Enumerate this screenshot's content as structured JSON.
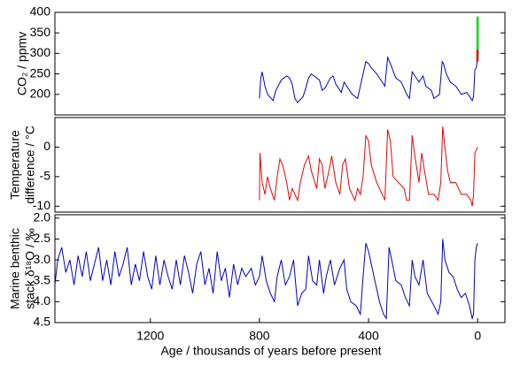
{
  "chart_data": [
    {
      "type": "line",
      "ylabel": "CO₂ / ppmv",
      "xlim": [
        1550,
        -100
      ],
      "ylim": [
        150,
        400
      ],
      "yticks": [
        200,
        250,
        300,
        350,
        400
      ],
      "series": [
        {
          "color": "#0000cc",
          "x": [
            800,
            795,
            790,
            780,
            770,
            750,
            740,
            720,
            700,
            690,
            680,
            670,
            660,
            640,
            630,
            620,
            610,
            600,
            580,
            570,
            560,
            540,
            530,
            520,
            500,
            490,
            480,
            460,
            440,
            430,
            410,
            400,
            390,
            370,
            350,
            340,
            330,
            320,
            300,
            280,
            260,
            250,
            240,
            230,
            215,
            200,
            190,
            170,
            160,
            150,
            140,
            130,
            125,
            115,
            100,
            80,
            60,
            40,
            20,
            15,
            10,
            5,
            2
          ],
          "values": [
            190,
            240,
            255,
            220,
            200,
            185,
            210,
            235,
            245,
            240,
            225,
            190,
            180,
            195,
            215,
            240,
            250,
            245,
            235,
            210,
            215,
            240,
            245,
            225,
            205,
            230,
            220,
            200,
            190,
            220,
            280,
            275,
            265,
            250,
            230,
            220,
            290,
            275,
            240,
            230,
            200,
            190,
            255,
            245,
            230,
            245,
            220,
            210,
            190,
            195,
            200,
            280,
            275,
            250,
            230,
            220,
            200,
            205,
            185,
            195,
            260,
            265,
            280
          ]
        },
        {
          "color": "#dd0000",
          "x": [
            1,
            0
          ],
          "values": [
            280,
            310
          ]
        },
        {
          "color": "#00dd00",
          "x": [
            0,
            0
          ],
          "values": [
            310,
            390
          ]
        }
      ]
    },
    {
      "type": "line",
      "ylabel": [
        "Temperature",
        "difference / °C"
      ],
      "xlim": [
        1550,
        -100
      ],
      "ylim": [
        -11,
        5
      ],
      "yticks": [
        -10,
        -5,
        0
      ],
      "series": [
        {
          "color": "#ee0000",
          "x": [
            800,
            798,
            795,
            790,
            780,
            770,
            760,
            745,
            735,
            725,
            715,
            700,
            690,
            680,
            660,
            650,
            635,
            620,
            610,
            590,
            580,
            570,
            560,
            545,
            535,
            520,
            505,
            495,
            485,
            470,
            450,
            440,
            430,
            420,
            410,
            400,
            390,
            370,
            350,
            340,
            330,
            320,
            310,
            290,
            270,
            260,
            250,
            240,
            235,
            225,
            215,
            205,
            195,
            180,
            160,
            145,
            135,
            128,
            120,
            110,
            100,
            80,
            60,
            40,
            25,
            20,
            15,
            10,
            5,
            0
          ],
          "values": [
            -9,
            -1,
            -3,
            -6,
            -8,
            -5,
            -7,
            -9,
            -5,
            -2,
            -3,
            -6,
            -9,
            -7,
            -9,
            -6,
            -3,
            -1.5,
            -4,
            -7,
            -2,
            -3,
            -7,
            -4,
            -1.5,
            -6,
            -8,
            -3,
            -2,
            -7,
            -9,
            -7,
            -8,
            -5,
            2,
            1,
            -3,
            -6,
            -8,
            -9,
            3,
            1,
            -5,
            -6,
            -7,
            -9,
            -9,
            2,
            0,
            -3,
            -6,
            -1,
            -4,
            -8,
            -8,
            -9,
            -6,
            3.5,
            0,
            -4,
            -6,
            -6,
            -8,
            -8,
            -9,
            -10,
            -8,
            -1,
            -0.5,
            0
          ]
        }
      ]
    },
    {
      "type": "line",
      "ylabel": [
        "Marine benthic",
        "stack δ¹⁸O / ‰"
      ],
      "xlabel": "Age / thousands of years before present",
      "xlim": [
        1550,
        -100
      ],
      "xticks": [
        1200,
        800,
        400,
        0
      ],
      "ylim": [
        4.5,
        1.92
      ],
      "yticks": [
        {
          "value": 2,
          "label": "2.0"
        },
        2.5,
        {
          "value": 3,
          "label": "3.0"
        },
        3.5,
        {
          "value": 4,
          "label": "4.0"
        },
        4.5
      ],
      "series": [
        {
          "color": "#0000cc",
          "x": [
            1550,
            1540,
            1525,
            1510,
            1495,
            1480,
            1465,
            1450,
            1435,
            1420,
            1405,
            1390,
            1375,
            1360,
            1345,
            1330,
            1315,
            1300,
            1285,
            1270,
            1255,
            1240,
            1225,
            1210,
            1195,
            1180,
            1165,
            1150,
            1135,
            1120,
            1105,
            1090,
            1075,
            1060,
            1045,
            1030,
            1015,
            1000,
            985,
            970,
            955,
            940,
            925,
            910,
            895,
            880,
            865,
            850,
            830,
            815,
            800,
            790,
            775,
            760,
            745,
            735,
            720,
            705,
            690,
            675,
            660,
            645,
            630,
            620,
            605,
            590,
            580,
            565,
            555,
            540,
            525,
            505,
            490,
            480,
            465,
            445,
            430,
            420,
            410,
            400,
            380,
            360,
            345,
            335,
            325,
            315,
            300,
            280,
            265,
            250,
            240,
            230,
            215,
            200,
            185,
            160,
            145,
            135,
            128,
            120,
            105,
            90,
            75,
            60,
            45,
            30,
            20,
            15,
            10,
            5,
            0
          ],
          "values": [
            3.6,
            3.0,
            2.7,
            3.3,
            3.0,
            3.6,
            2.9,
            3.4,
            2.8,
            3.5,
            3.1,
            2.7,
            3.5,
            3.0,
            3.6,
            2.8,
            3.4,
            3.1,
            2.7,
            3.6,
            3.1,
            3.5,
            2.8,
            3.4,
            3.7,
            2.9,
            3.6,
            3.0,
            3.4,
            3.7,
            3.0,
            3.6,
            2.9,
            3.3,
            3.8,
            3.1,
            2.8,
            3.6,
            3.2,
            3.8,
            2.8,
            3.5,
            3.2,
            3.9,
            3.1,
            3.6,
            3.2,
            3.4,
            3.2,
            3.6,
            3.4,
            2.9,
            3.5,
            3.8,
            4.0,
            3.4,
            3.0,
            3.6,
            3.4,
            3.0,
            4.1,
            3.8,
            3.7,
            2.9,
            3.5,
            3.6,
            3.0,
            3.8,
            3.4,
            3.0,
            3.6,
            3.2,
            3.0,
            3.7,
            4.0,
            4.1,
            4.3,
            3.4,
            2.6,
            2.8,
            3.4,
            4.0,
            4.3,
            4.4,
            2.7,
            3.0,
            3.5,
            3.6,
            3.9,
            4.1,
            3.0,
            3.4,
            3.6,
            3.0,
            3.8,
            4.1,
            4.3,
            4.0,
            2.5,
            3.0,
            3.3,
            3.4,
            3.7,
            3.9,
            3.8,
            4.1,
            4.4,
            4.3,
            3.0,
            2.7,
            2.6
          ]
        }
      ]
    }
  ]
}
